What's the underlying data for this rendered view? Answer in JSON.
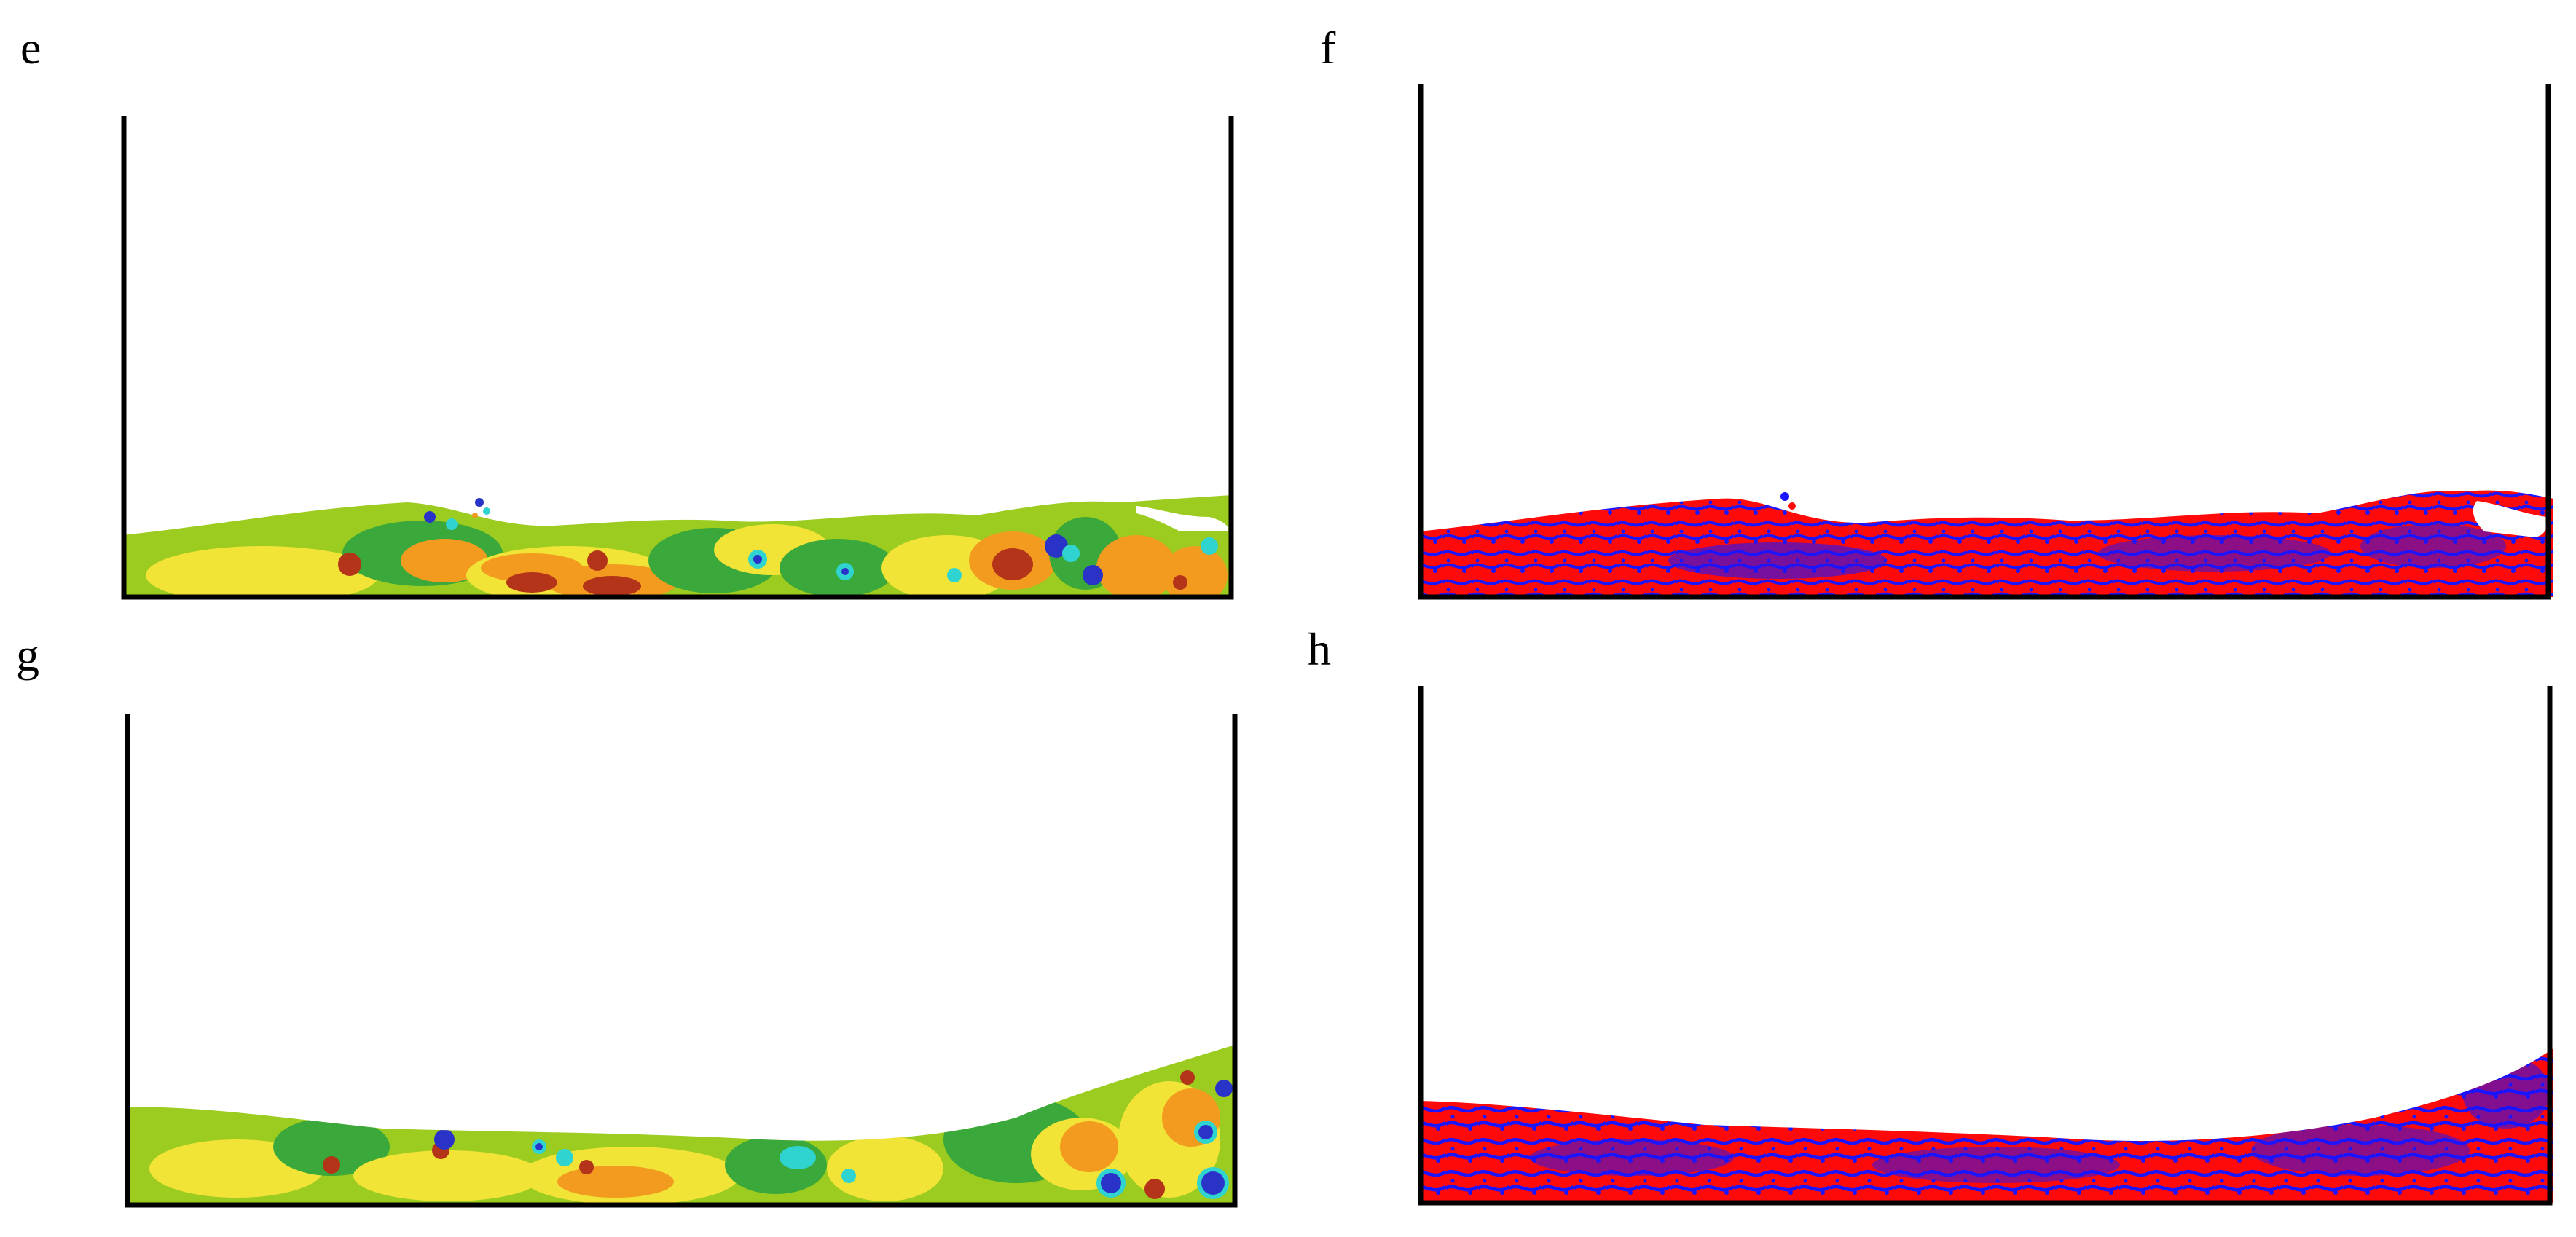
{
  "panels": [
    {
      "id": "e",
      "label": "e",
      "type": "pressure-contour",
      "colors": [
        "#9bcc1f",
        "#3aa83a",
        "#f2e437",
        "#f29b1f",
        "#b33418",
        "#2fd3d0",
        "#2a33c8"
      ]
    },
    {
      "id": "f",
      "label": "f",
      "type": "phase-distribution",
      "colors": [
        "#ff0a0a",
        "#1a14ff"
      ]
    },
    {
      "id": "g",
      "label": "g",
      "type": "pressure-contour",
      "colors": [
        "#9bcc1f",
        "#3aa83a",
        "#f2e437",
        "#f29b1f",
        "#b33418",
        "#2fd3d0",
        "#2a33c8"
      ]
    },
    {
      "id": "h",
      "label": "h",
      "type": "phase-distribution",
      "colors": [
        "#ff0a0a",
        "#1a14ff"
      ]
    }
  ],
  "colors": {
    "tank_wall": "#000000",
    "background": "#ffffff"
  }
}
